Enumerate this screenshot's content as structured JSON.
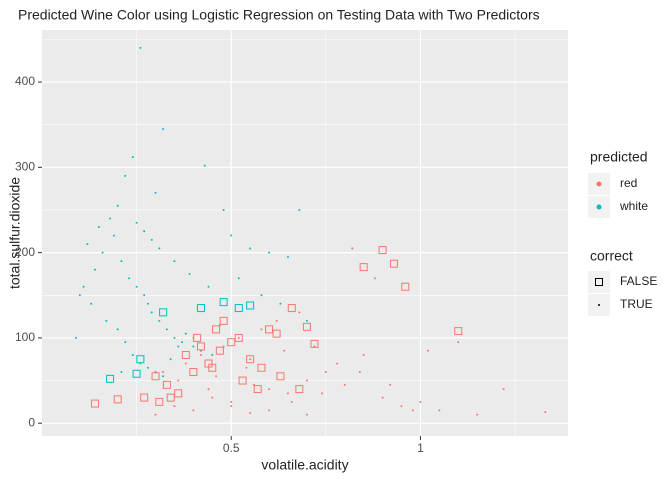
{
  "chart_data": {
    "type": "scatter",
    "title": "Predicted Wine Color using Logistic Regression on Testing Data with Two Predictors",
    "x_label": "volatile.acidity",
    "y_label": "total.sulfur.dioxide",
    "xlim": [
      0,
      1.39
    ],
    "ylim": [
      -15,
      461
    ],
    "xticks": [
      0.5,
      1.0
    ],
    "yticks": [
      0,
      100,
      200,
      300,
      400
    ],
    "x_minor_ticks": [
      0.25,
      0.75,
      1.25
    ],
    "y_minor_ticks": [
      50,
      150,
      250,
      350,
      450
    ],
    "grid": true,
    "color_legend": {
      "title": "predicted",
      "labels": [
        "red",
        "white"
      ],
      "colors": [
        "#F8766D",
        "#00BFC4"
      ]
    },
    "shape_legend": {
      "title": "correct",
      "labels": [
        "FALSE",
        "TRUE"
      ],
      "shapes": [
        "square",
        "point"
      ]
    },
    "series": [
      {
        "color": "#00BFC4",
        "shape": "point",
        "x": [
          0.26,
          0.32,
          0.24,
          0.22,
          0.43,
          0.3,
          0.2,
          0.18,
          0.15,
          0.12,
          0.1,
          0.14,
          0.16,
          0.19,
          0.21,
          0.23,
          0.25,
          0.27,
          0.28,
          0.29,
          0.31,
          0.33,
          0.35,
          0.37,
          0.4,
          0.42,
          0.45,
          0.48,
          0.5,
          0.55,
          0.6,
          0.65,
          0.68,
          0.2,
          0.22,
          0.24,
          0.26,
          0.28,
          0.3,
          0.32,
          0.34,
          0.36,
          0.38,
          0.17,
          0.13,
          0.11,
          0.09,
          0.25,
          0.27,
          0.29,
          0.31,
          0.35,
          0.39,
          0.44,
          0.52,
          0.58,
          0.63,
          0.7,
          0.82,
          0.21
        ],
        "y": [
          440,
          345,
          312,
          290,
          302,
          270,
          255,
          240,
          230,
          210,
          150,
          180,
          200,
          220,
          190,
          170,
          160,
          150,
          140,
          130,
          120,
          110,
          100,
          95,
          90,
          85,
          80,
          250,
          220,
          205,
          200,
          195,
          250,
          110,
          95,
          80,
          70,
          65,
          60,
          55,
          75,
          90,
          105,
          120,
          140,
          160,
          100,
          235,
          225,
          215,
          205,
          190,
          175,
          160,
          170,
          150,
          140,
          120,
          205,
          60
        ]
      },
      {
        "color": "#F8766D",
        "shape": "point",
        "x": [
          1.33,
          1.22,
          1.1,
          0.88,
          0.82,
          0.3,
          0.35,
          0.4,
          0.45,
          0.5,
          0.55,
          0.6,
          0.65,
          0.7,
          0.75,
          0.8,
          0.85,
          0.9,
          0.95,
          1.0,
          1.05,
          1.15,
          0.32,
          0.38,
          0.42,
          0.48,
          0.52,
          0.58,
          0.62,
          0.68,
          0.72,
          0.78,
          0.44,
          0.46,
          0.54,
          0.56,
          0.64,
          0.66,
          0.74,
          0.84,
          0.92,
          0.98,
          1.02,
          0.36,
          0.5,
          0.6,
          0.7,
          0.4,
          0.55,
          0.47
        ],
        "y": [
          13,
          40,
          95,
          170,
          205,
          10,
          20,
          15,
          30,
          25,
          12,
          40,
          35,
          50,
          60,
          45,
          80,
          30,
          20,
          25,
          15,
          10,
          60,
          70,
          80,
          90,
          100,
          110,
          120,
          130,
          90,
          70,
          40,
          55,
          65,
          45,
          85,
          25,
          35,
          60,
          45,
          15,
          85,
          50,
          20,
          15,
          10,
          100,
          75,
          115
        ]
      },
      {
        "color": "#F8766D",
        "shape": "square",
        "x": [
          0.14,
          0.2,
          0.85,
          0.9,
          0.93,
          0.96,
          1.1,
          0.66,
          0.7,
          0.6,
          0.72,
          0.48,
          0.52,
          0.3,
          0.33,
          0.36,
          0.4,
          0.44,
          0.47,
          0.5,
          0.55,
          0.58,
          0.62,
          0.34,
          0.38,
          0.42,
          0.45,
          0.53,
          0.57,
          0.63,
          0.68,
          0.27,
          0.31,
          0.41,
          0.46
        ],
        "y": [
          23,
          28,
          183,
          203,
          187,
          160,
          108,
          135,
          113,
          110,
          93,
          120,
          100,
          55,
          45,
          35,
          60,
          70,
          85,
          95,
          75,
          65,
          105,
          30,
          80,
          90,
          65,
          50,
          40,
          55,
          40,
          30,
          25,
          100,
          110
        ]
      },
      {
        "color": "#00BFC4",
        "shape": "square",
        "x": [
          0.52,
          0.48,
          0.55,
          0.18,
          0.25,
          0.32,
          0.42,
          0.26
        ],
        "y": [
          135,
          142,
          138,
          52,
          58,
          130,
          135,
          75
        ]
      }
    ]
  }
}
